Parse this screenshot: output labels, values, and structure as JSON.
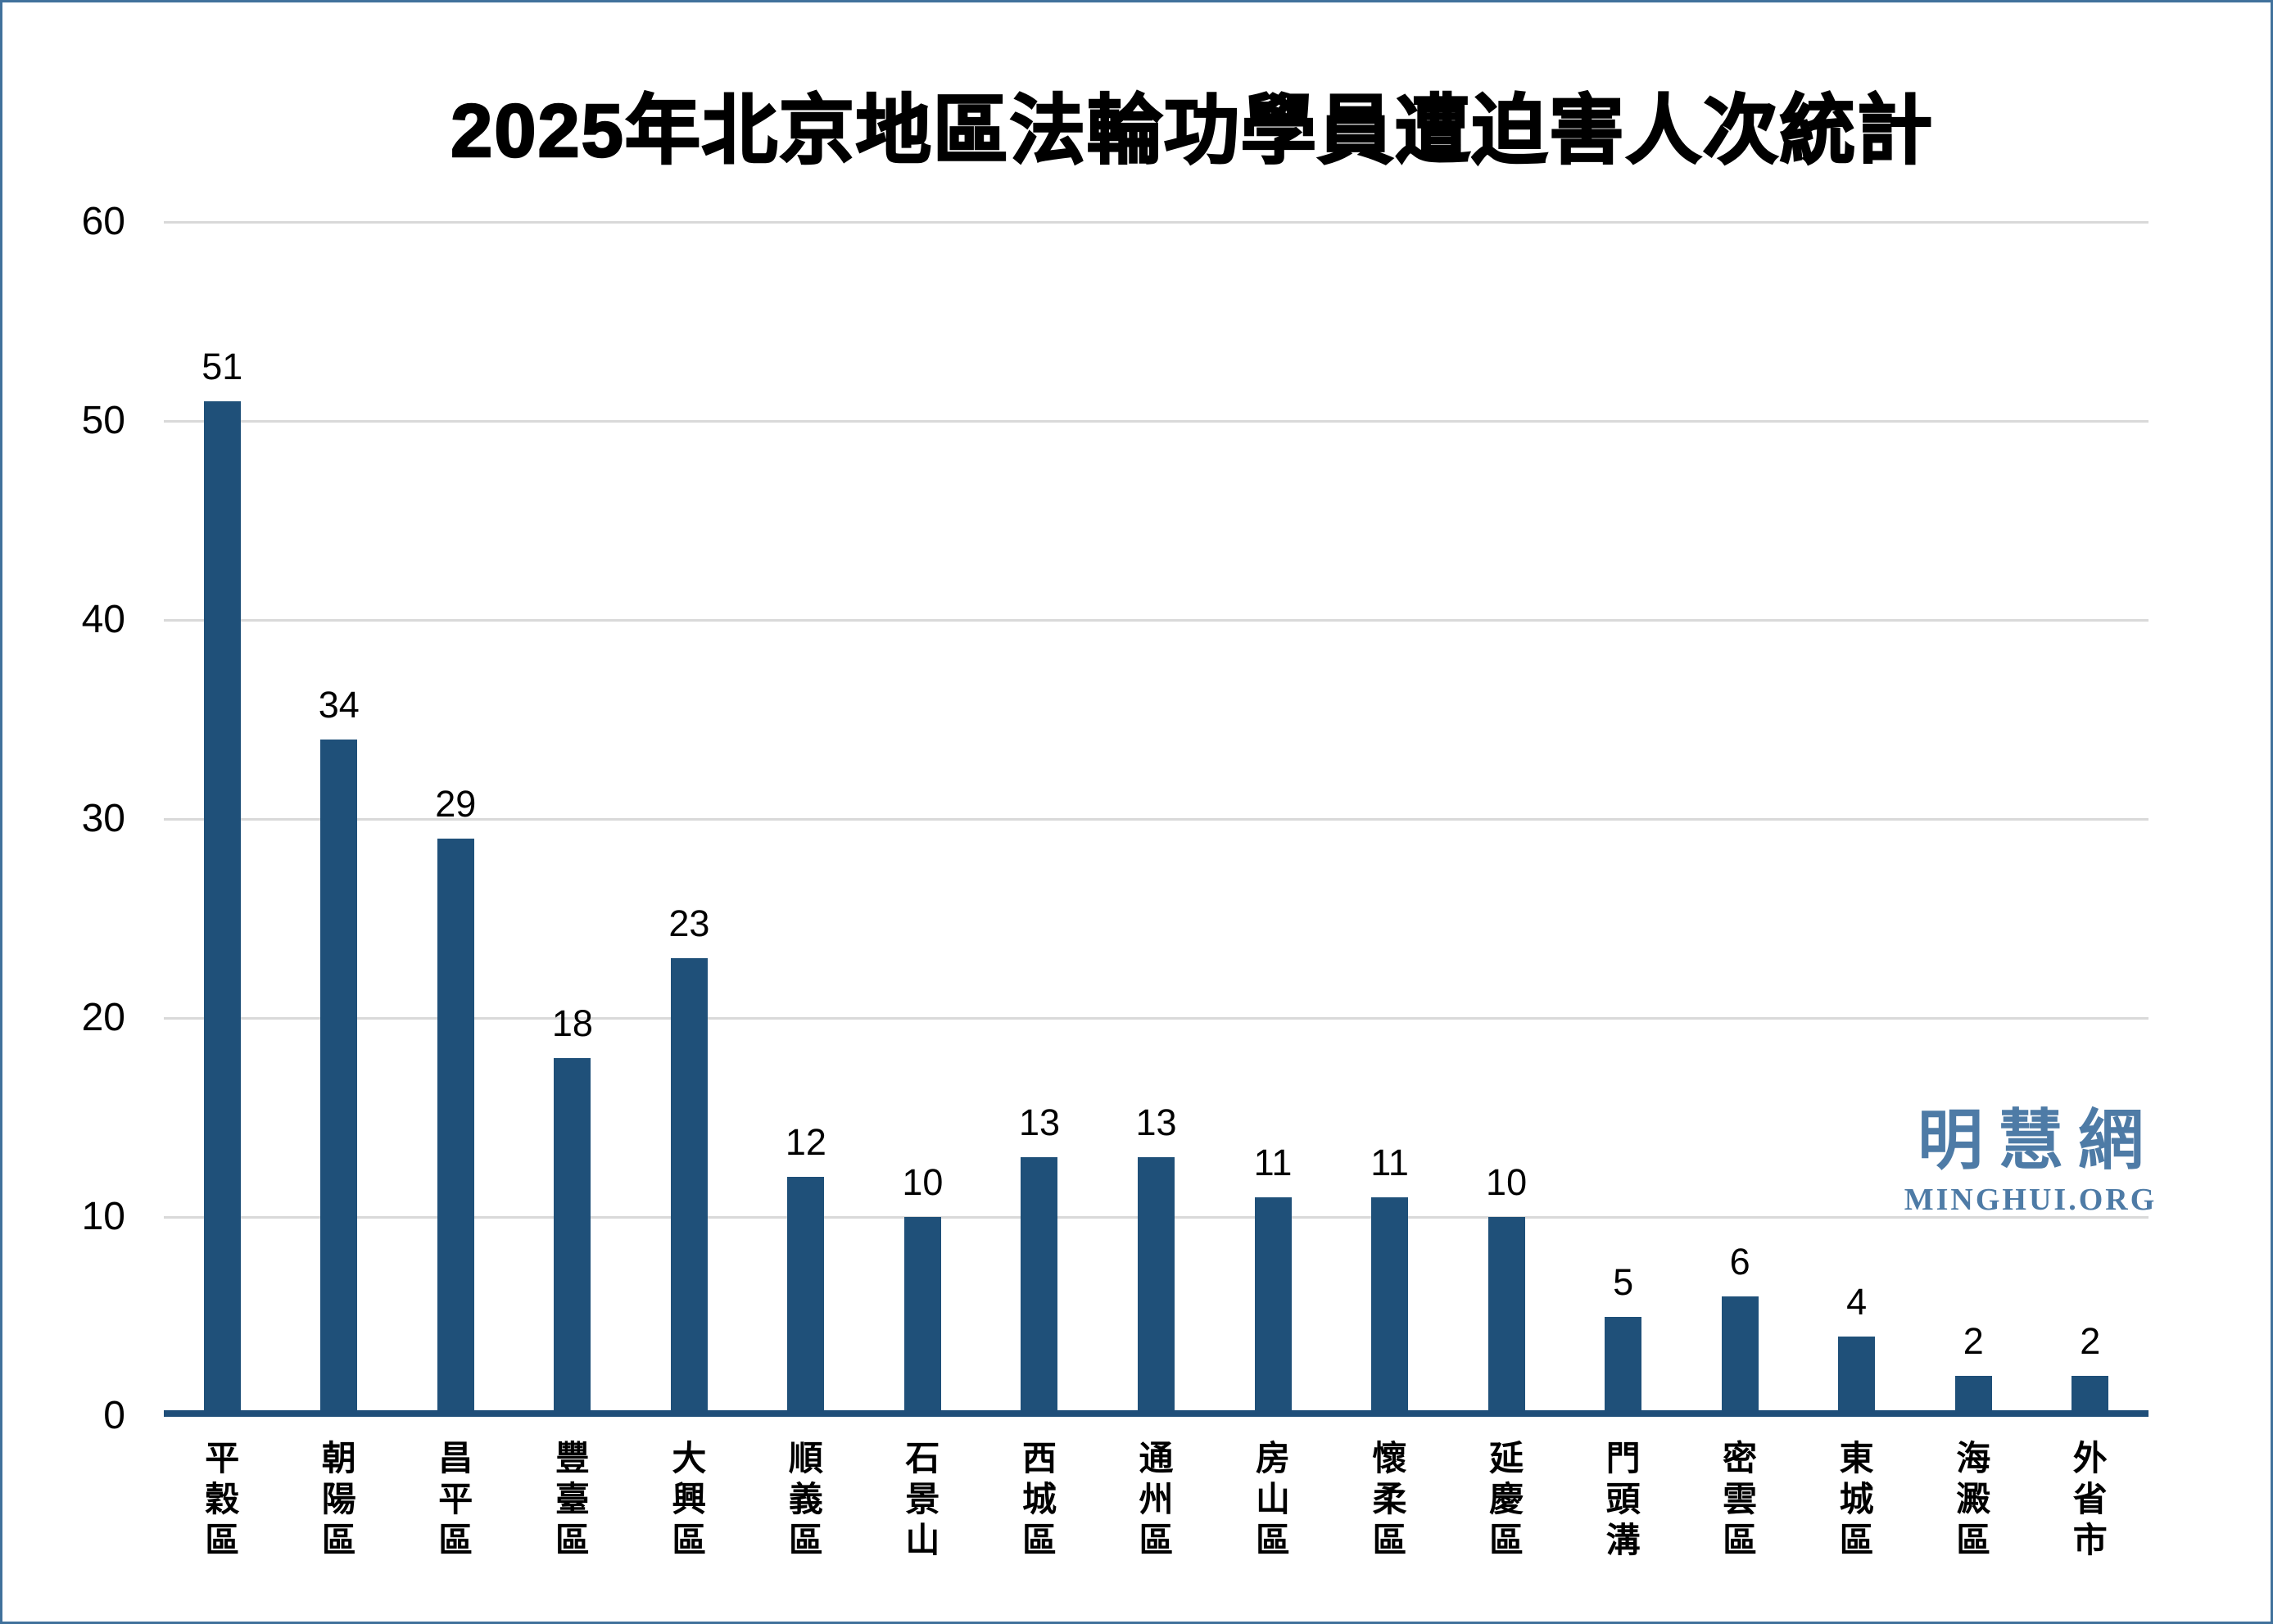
{
  "title": "2025年北京地區法輪功學員遭迫害人次統計",
  "watermark": {
    "cjk": "明慧網",
    "latin": "MINGHUI.ORG"
  },
  "colors": {
    "bar": "#1F5079",
    "axis_line": "#1F4E79",
    "gridline": "#D9D9D9",
    "canvas_border": "#41719C",
    "watermark_blue": "#4E7BA6",
    "text": "#000000",
    "background": "#FFFFFF"
  },
  "chart_data": {
    "type": "bar",
    "title": "2025年北京地區法輪功學員遭迫害人次統計",
    "categories": [
      "平穀區",
      "朝陽區",
      "昌平區",
      "豐臺區",
      "大興區",
      "順義區",
      "石景山",
      "西城區",
      "通州區",
      "房山區",
      "懷柔區",
      "延慶區",
      "門頭溝",
      "密雲區",
      "東城區",
      "海澱區",
      "外省市"
    ],
    "values": [
      51,
      34,
      29,
      18,
      23,
      12,
      10,
      13,
      13,
      11,
      11,
      10,
      5,
      6,
      4,
      2,
      2
    ],
    "xlabel": "",
    "ylabel": "",
    "ylim": [
      0,
      60
    ],
    "yticks": [
      0,
      10,
      20,
      30,
      40,
      50,
      60
    ],
    "grid": true,
    "data_labels": true,
    "legend_position": "none",
    "category_label_orientation": "vertical-stacked"
  }
}
